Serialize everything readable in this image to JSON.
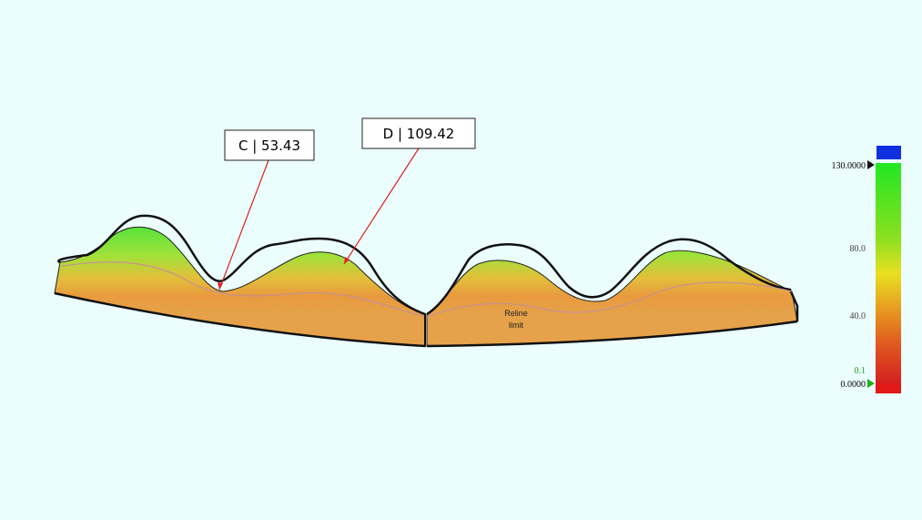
{
  "callouts": [
    {
      "label": "C | 53.43"
    },
    {
      "label": "D | 109.42"
    }
  ],
  "profile": {
    "label_lines": [
      "Reline",
      "limit"
    ]
  },
  "color_scale": {
    "labels": [
      "130.0000",
      "80.0",
      "40.0",
      "0.1",
      "0.0000"
    ]
  }
}
